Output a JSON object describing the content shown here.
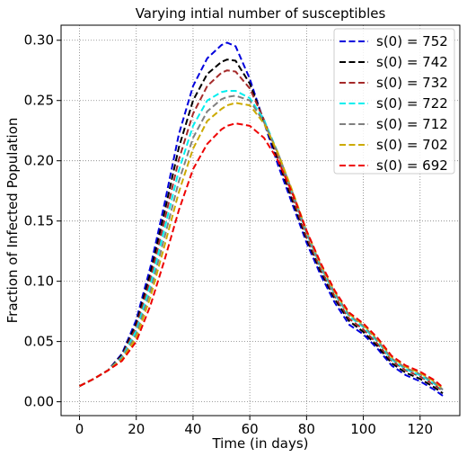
{
  "chart_data": {
    "type": "line",
    "title": "Varying intial number of susceptibles",
    "xlabel": "Time (in days)",
    "ylabel": "Fraction of Infected Population",
    "xlim": [
      -6.5,
      134
    ],
    "ylim": [
      -0.0115,
      0.3125
    ],
    "xticks": [
      0,
      20,
      40,
      60,
      80,
      100,
      120
    ],
    "xtick_labels": [
      "0",
      "20",
      "40",
      "60",
      "80",
      "100",
      "120"
    ],
    "yticks": [
      0.0,
      0.05,
      0.1,
      0.15,
      0.2,
      0.25,
      0.3
    ],
    "ytick_labels": [
      "0.00",
      "0.05",
      "0.10",
      "0.15",
      "0.20",
      "0.25",
      "0.30"
    ],
    "grid": true,
    "grid_style": "dotted",
    "legend_position": "top-right",
    "line_style": "dashed",
    "x": [
      0,
      5,
      10,
      15,
      20,
      25,
      30,
      35,
      40,
      45,
      50,
      52,
      55,
      60,
      65,
      70,
      75,
      80,
      85,
      90,
      95,
      100,
      105,
      110,
      115,
      120,
      125,
      128
    ],
    "series": [
      {
        "name": "s(0) = 752",
        "color": "#0000dd",
        "values": [
          0.013,
          0.019,
          0.026,
          0.04,
          0.068,
          0.112,
          0.165,
          0.222,
          0.262,
          0.285,
          0.296,
          0.298,
          0.295,
          0.268,
          0.232,
          0.196,
          0.164,
          0.132,
          0.105,
          0.082,
          0.064,
          0.056,
          0.044,
          0.03,
          0.022,
          0.017,
          0.01,
          0.005
        ]
      },
      {
        "name": "s(0) = 742",
        "color": "#000000",
        "values": [
          0.013,
          0.019,
          0.026,
          0.039,
          0.065,
          0.107,
          0.158,
          0.211,
          0.25,
          0.272,
          0.282,
          0.284,
          0.283,
          0.264,
          0.233,
          0.2,
          0.167,
          0.135,
          0.108,
          0.085,
          0.067,
          0.058,
          0.046,
          0.032,
          0.024,
          0.019,
          0.012,
          0.007
        ]
      },
      {
        "name": "s(0) = 732",
        "color": "#a52a2a",
        "values": [
          0.013,
          0.019,
          0.026,
          0.038,
          0.062,
          0.102,
          0.151,
          0.201,
          0.239,
          0.262,
          0.273,
          0.275,
          0.274,
          0.26,
          0.234,
          0.203,
          0.17,
          0.137,
          0.11,
          0.087,
          0.069,
          0.06,
          0.048,
          0.034,
          0.026,
          0.021,
          0.014,
          0.009
        ]
      },
      {
        "name": "s(0) = 722",
        "color": "#00eeee",
        "values": [
          0.013,
          0.019,
          0.026,
          0.037,
          0.059,
          0.097,
          0.144,
          0.192,
          0.229,
          0.25,
          0.257,
          0.258,
          0.258,
          0.252,
          0.234,
          0.206,
          0.173,
          0.14,
          0.112,
          0.089,
          0.071,
          0.062,
          0.05,
          0.035,
          0.027,
          0.022,
          0.015,
          0.01
        ]
      },
      {
        "name": "s(0) = 712",
        "color": "#808080",
        "values": [
          0.013,
          0.019,
          0.026,
          0.036,
          0.056,
          0.092,
          0.137,
          0.183,
          0.219,
          0.241,
          0.251,
          0.253,
          0.254,
          0.25,
          0.232,
          0.206,
          0.174,
          0.141,
          0.113,
          0.09,
          0.072,
          0.063,
          0.051,
          0.036,
          0.028,
          0.023,
          0.016,
          0.01
        ]
      },
      {
        "name": "s(0) = 702",
        "color": "#ccaa00",
        "values": [
          0.013,
          0.019,
          0.026,
          0.035,
          0.053,
          0.087,
          0.13,
          0.174,
          0.21,
          0.233,
          0.243,
          0.246,
          0.248,
          0.246,
          0.231,
          0.206,
          0.175,
          0.142,
          0.114,
          0.091,
          0.073,
          0.064,
          0.052,
          0.037,
          0.029,
          0.024,
          0.017,
          0.011
        ]
      },
      {
        "name": "s(0) = 692",
        "color": "#ee0000",
        "values": [
          0.013,
          0.019,
          0.026,
          0.034,
          0.05,
          0.08,
          0.118,
          0.159,
          0.193,
          0.214,
          0.226,
          0.229,
          0.231,
          0.229,
          0.219,
          0.2,
          0.173,
          0.142,
          0.115,
          0.092,
          0.074,
          0.065,
          0.053,
          0.038,
          0.03,
          0.025,
          0.018,
          0.012
        ]
      }
    ]
  }
}
